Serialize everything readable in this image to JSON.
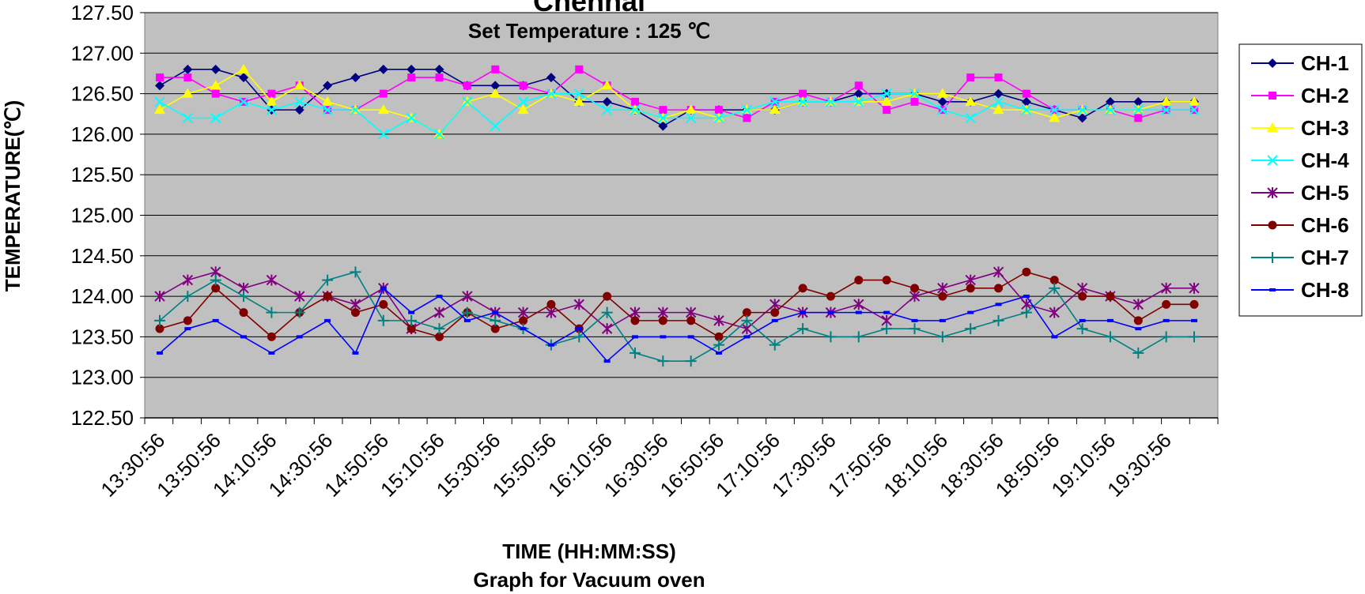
{
  "chart_data": {
    "type": "line",
    "title": "Chennai",
    "subtitle": "Set Temperature : 125 ℃",
    "xlabel": "TIME (HH:MM:SS)",
    "caption": "Graph for Vacuum oven",
    "ylabel": "TEMPERATURE(℃)",
    "ylim": [
      122.5,
      127.5
    ],
    "y_ticks": [
      "127.50",
      "127.00",
      "126.50",
      "126.00",
      "125.50",
      "125.00",
      "124.50",
      "124.00",
      "123.50",
      "123.00",
      "122.50"
    ],
    "x_tick_labels": [
      "13:30:56",
      "13:50:56",
      "14:10:56",
      "14:30:56",
      "14:50:56",
      "15:10:56",
      "15:30:56",
      "15:50:56",
      "16:10:56",
      "16:30:56",
      "16:50:56",
      "17:10:56",
      "17:30:56",
      "17:50:56",
      "18:10:56",
      "18:30:56",
      "18:50:56",
      "19:10:56",
      "19:30:56"
    ],
    "grid": "horizontal",
    "plot_background": "#C0C0C0",
    "legend_position": "right",
    "series": [
      {
        "name": "CH-1",
        "color": "#000080",
        "marker": "diamond",
        "values": [
          126.6,
          126.8,
          126.8,
          126.7,
          126.3,
          126.3,
          126.6,
          126.7,
          126.8,
          126.8,
          126.8,
          126.6,
          126.6,
          126.6,
          126.7,
          126.4,
          126.4,
          126.3,
          126.1,
          126.3,
          126.3,
          126.3,
          126.3,
          126.4,
          126.4,
          126.5,
          126.5,
          126.5,
          126.4,
          126.4,
          126.5,
          126.4,
          126.3,
          126.2,
          126.4,
          126.4,
          126.4,
          126.4
        ]
      },
      {
        "name": "CH-2",
        "color": "#FF00FF",
        "marker": "square",
        "values": [
          126.7,
          126.7,
          126.5,
          126.4,
          126.5,
          126.6,
          126.3,
          126.3,
          126.5,
          126.7,
          126.7,
          126.6,
          126.8,
          126.6,
          126.5,
          126.8,
          126.6,
          126.4,
          126.3,
          126.3,
          126.3,
          126.2,
          126.4,
          126.5,
          126.4,
          126.6,
          126.3,
          126.4,
          126.3,
          126.7,
          126.7,
          126.5,
          126.3,
          126.3,
          126.3,
          126.2,
          126.3,
          126.3
        ]
      },
      {
        "name": "CH-3",
        "color": "#FFFF00",
        "marker": "triangle",
        "values": [
          126.3,
          126.5,
          126.6,
          126.8,
          126.4,
          126.6,
          126.4,
          126.3,
          126.3,
          126.2,
          126.0,
          126.4,
          126.5,
          126.3,
          126.5,
          126.4,
          126.6,
          126.3,
          126.2,
          126.3,
          126.2,
          126.3,
          126.3,
          126.4,
          126.4,
          126.4,
          126.4,
          126.5,
          126.5,
          126.4,
          126.3,
          126.3,
          126.2,
          126.3,
          126.3,
          126.3,
          126.4,
          126.4
        ]
      },
      {
        "name": "CH-4",
        "color": "#00FFFF",
        "marker": "x",
        "values": [
          126.4,
          126.2,
          126.2,
          126.4,
          126.3,
          126.4,
          126.3,
          126.3,
          126.0,
          126.2,
          126.0,
          126.4,
          126.1,
          126.4,
          126.5,
          126.5,
          126.3,
          126.3,
          126.2,
          126.2,
          126.2,
          126.3,
          126.4,
          126.4,
          126.4,
          126.4,
          126.5,
          126.5,
          126.3,
          126.2,
          126.4,
          126.3,
          126.3,
          126.3,
          126.3,
          126.3,
          126.3,
          126.3
        ]
      },
      {
        "name": "CH-5",
        "color": "#800080",
        "marker": "star",
        "values": [
          124.0,
          124.2,
          124.3,
          124.1,
          124.2,
          124.0,
          124.0,
          123.9,
          124.1,
          123.6,
          123.8,
          124.0,
          123.8,
          123.8,
          123.8,
          123.9,
          123.6,
          123.8,
          123.8,
          123.8,
          123.7,
          123.6,
          123.9,
          123.8,
          123.8,
          123.9,
          123.7,
          124.0,
          124.1,
          124.2,
          124.3,
          123.9,
          123.8,
          124.1,
          124.0,
          123.9,
          124.1,
          124.1
        ]
      },
      {
        "name": "CH-6",
        "color": "#800000",
        "marker": "circle",
        "values": [
          123.6,
          123.7,
          124.1,
          123.8,
          123.5,
          123.8,
          124.0,
          123.8,
          123.9,
          123.6,
          123.5,
          123.8,
          123.6,
          123.7,
          123.9,
          123.6,
          124.0,
          123.7,
          123.7,
          123.7,
          123.5,
          123.8,
          123.8,
          124.1,
          124.0,
          124.2,
          124.2,
          124.1,
          124.0,
          124.1,
          124.1,
          124.3,
          124.2,
          124.0,
          124.0,
          123.7,
          123.9,
          123.9
        ]
      },
      {
        "name": "CH-7",
        "color": "#008080",
        "marker": "plus",
        "values": [
          123.7,
          124.0,
          124.2,
          124.0,
          123.8,
          123.8,
          124.2,
          124.3,
          123.7,
          123.7,
          123.6,
          123.8,
          123.7,
          123.6,
          123.4,
          123.5,
          123.8,
          123.3,
          123.2,
          123.2,
          123.4,
          123.7,
          123.4,
          123.6,
          123.5,
          123.5,
          123.6,
          123.6,
          123.5,
          123.6,
          123.7,
          123.8,
          124.1,
          123.6,
          123.5,
          123.3,
          123.5,
          123.5
        ]
      },
      {
        "name": "CH-8",
        "color": "#0000FF",
        "marker": "dash",
        "values": [
          123.3,
          123.6,
          123.7,
          123.5,
          123.3,
          123.5,
          123.7,
          123.3,
          124.1,
          123.8,
          124.0,
          123.7,
          123.8,
          123.6,
          123.4,
          123.6,
          123.2,
          123.5,
          123.5,
          123.5,
          123.3,
          123.5,
          123.7,
          123.8,
          123.8,
          123.8,
          123.8,
          123.7,
          123.7,
          123.8,
          123.9,
          124.0,
          123.5,
          123.7,
          123.7,
          123.6,
          123.7,
          123.7
        ]
      }
    ]
  }
}
